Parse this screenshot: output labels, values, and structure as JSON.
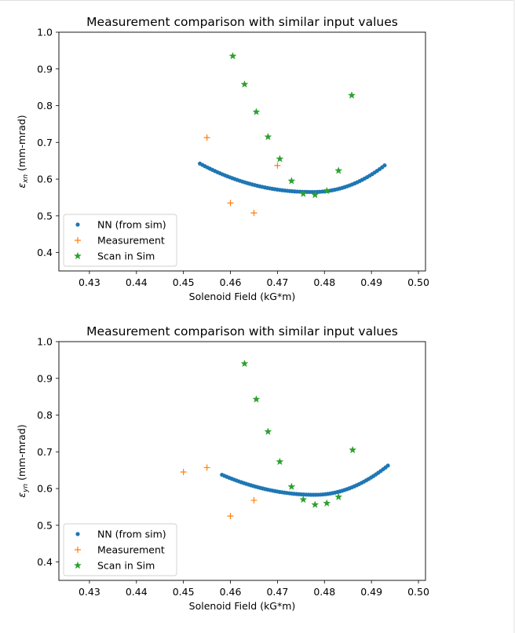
{
  "chart_data": [
    {
      "type": "scatter",
      "title": "Measurement comparison with similar input values",
      "xlabel": "Solenoid Field (kG*m)",
      "ylabel": "ε_xn (mm-mrad)",
      "ylabel_symbol": "ε",
      "ylabel_sub": "xn",
      "ylabel_unit": " (mm-mrad)",
      "xlim": [
        0.4235,
        0.5015
      ],
      "ylim": [
        0.35,
        1.0
      ],
      "xticks": [
        0.43,
        0.44,
        0.45,
        0.46,
        0.47,
        0.48,
        0.49,
        0.5
      ],
      "xtick_labels": [
        "0.43",
        "0.44",
        "0.45",
        "0.46",
        "0.47",
        "0.48",
        "0.49",
        "0.50"
      ],
      "yticks": [
        0.4,
        0.5,
        0.6,
        0.7,
        0.8,
        0.9,
        1.0
      ],
      "ytick_labels": [
        "0.4",
        "0.5",
        "0.6",
        "0.7",
        "0.8",
        "0.9",
        "1.0"
      ],
      "legend_position": "lower-left",
      "series": [
        {
          "name": "NN (from sim)",
          "marker": "dot",
          "color": "#1f77b4",
          "curve": {
            "center": 0.4775,
            "min": 0.565,
            "left_a": 218,
            "left_p": 2.13,
            "right_a": 470,
            "right_p": 2.1,
            "from": 0.4535,
            "to": 0.4928,
            "n": 75
          }
        },
        {
          "name": "Measurement",
          "marker": "plus",
          "color": "#ff7f0e",
          "x": [
            0.455,
            0.46,
            0.465,
            0.47
          ],
          "y": [
            0.713,
            0.535,
            0.508,
            0.637
          ]
        },
        {
          "name": "Scan in Sim",
          "marker": "star",
          "color": "#2ca02c",
          "x": [
            0.4605,
            0.463,
            0.4655,
            0.468,
            0.4705,
            0.473,
            0.4755,
            0.478,
            0.4805,
            0.483,
            0.4858
          ],
          "y": [
            0.935,
            0.858,
            0.783,
            0.715,
            0.655,
            0.595,
            0.56,
            0.557,
            0.568,
            0.623,
            0.828
          ]
        }
      ]
    },
    {
      "type": "scatter",
      "title": "Measurement comparison with similar input values",
      "xlabel": "Solenoid Field (kG*m)",
      "ylabel": "ε_yn (mm-mrad)",
      "ylabel_symbol": "ε",
      "ylabel_sub": "yn",
      "ylabel_unit": " (mm-mrad)",
      "xlim": [
        0.4235,
        0.5015
      ],
      "ylim": [
        0.35,
        1.0
      ],
      "xticks": [
        0.43,
        0.44,
        0.45,
        0.46,
        0.47,
        0.48,
        0.49,
        0.5
      ],
      "xtick_labels": [
        "0.43",
        "0.44",
        "0.45",
        "0.46",
        "0.47",
        "0.48",
        "0.49",
        "0.50"
      ],
      "yticks": [
        0.4,
        0.5,
        0.6,
        0.7,
        0.8,
        0.9,
        1.0
      ],
      "ytick_labels": [
        "0.4",
        "0.5",
        "0.6",
        "0.7",
        "0.8",
        "0.9",
        "1.0"
      ],
      "legend_position": "lower-left",
      "series": [
        {
          "name": "NN (from sim)",
          "marker": "dot",
          "color": "#1f77b4",
          "curve": {
            "center": 0.478,
            "min": 0.583,
            "left_a": 139,
            "left_p": 2.0,
            "right_a": 331,
            "right_p": 2.0,
            "from": 0.4582,
            "to": 0.4935,
            "n": 70
          }
        },
        {
          "name": "Measurement",
          "marker": "plus",
          "color": "#ff7f0e",
          "x": [
            0.45,
            0.455,
            0.46,
            0.465
          ],
          "y": [
            0.645,
            0.657,
            0.525,
            0.568
          ]
        },
        {
          "name": "Scan in Sim",
          "marker": "star",
          "color": "#2ca02c",
          "x": [
            0.463,
            0.4655,
            0.468,
            0.4705,
            0.473,
            0.4755,
            0.478,
            0.4805,
            0.483,
            0.486
          ],
          "y": [
            0.94,
            0.843,
            0.755,
            0.673,
            0.605,
            0.57,
            0.556,
            0.56,
            0.577,
            0.705
          ]
        }
      ]
    }
  ]
}
